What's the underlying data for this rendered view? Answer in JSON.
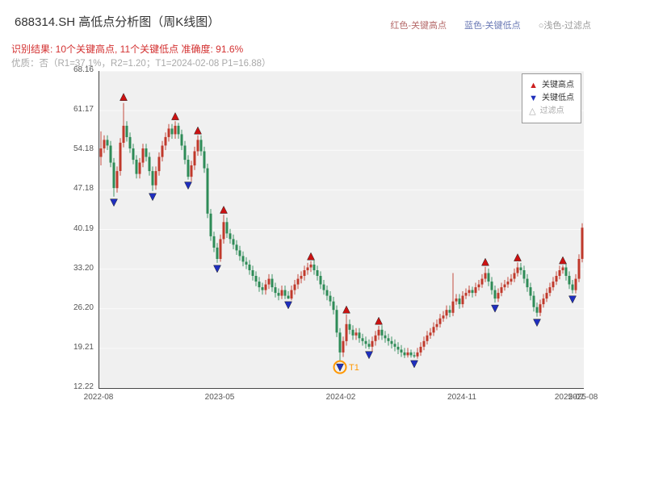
{
  "header": {
    "title": "688314.SH 高低点分析图（周K线图）",
    "legend_top": [
      {
        "label": "红色-关键高点",
        "color": "#b56a6a"
      },
      {
        "label": "蓝色-关键低点",
        "color": "#6a79b5"
      },
      {
        "label": "○浅色-过滤点",
        "color": "#9a9a9a"
      }
    ],
    "result_text": "识别结果: 10个关键高点, 11个关键低点  准确度: 91.6%",
    "quality_text": "优质：否（R1=37.1%，R2=1.20；T1=2024-02-08 P1=16.88）"
  },
  "plot_legend": {
    "items": [
      {
        "marker": "▲",
        "label": "关键高点",
        "marker_color": "#cc1f1f",
        "text_color": "#333333"
      },
      {
        "marker": "▼",
        "label": "关键低点",
        "marker_color": "#2030bb",
        "text_color": "#333333"
      },
      {
        "marker": "△",
        "label": "过滤点",
        "marker_color": "#aaaaaa",
        "text_color": "#aaaaaa"
      }
    ]
  },
  "chart_data": {
    "type": "candlestick",
    "title": "688314.SH 高低点分析图（周K线图）",
    "ylim": [
      12.22,
      68.16
    ],
    "y_ticks": [
      68.16,
      61.17,
      54.18,
      47.18,
      40.19,
      33.2,
      26.2,
      19.21,
      12.22
    ],
    "x_ticks": [
      {
        "label": "2022-08",
        "pos": 0.0
      },
      {
        "label": "2023-05",
        "pos": 0.25
      },
      {
        "label": "2024-02",
        "pos": 0.5
      },
      {
        "label": "2024-11",
        "pos": 0.75
      },
      {
        "label": "2025-07",
        "pos": 0.972
      },
      {
        "label": "2025-08",
        "pos": 1.0
      }
    ],
    "up_color": "#c0392b",
    "down_color": "#2e8b57",
    "high_marker_color": "#cc1111",
    "low_marker_color": "#1f2fbf",
    "grid_color": "rgba(255,255,255,0.7)",
    "key_highs": [
      {
        "i": 7,
        "price": 63.5
      },
      {
        "i": 23,
        "price": 60.1
      },
      {
        "i": 30,
        "price": 57.6
      },
      {
        "i": 38,
        "price": 43.6
      },
      {
        "i": 65,
        "price": 35.4
      },
      {
        "i": 76,
        "price": 26.0
      },
      {
        "i": 86,
        "price": 24.0
      },
      {
        "i": 119,
        "price": 34.4
      },
      {
        "i": 129,
        "price": 35.2
      },
      {
        "i": 143,
        "price": 34.7
      }
    ],
    "key_lows": [
      {
        "i": 4,
        "price": 45.0
      },
      {
        "i": 16,
        "price": 46.0
      },
      {
        "i": 27,
        "price": 48.0
      },
      {
        "i": 36,
        "price": 33.3
      },
      {
        "i": 58,
        "price": 26.9
      },
      {
        "i": 74,
        "price": 15.9
      },
      {
        "i": 83,
        "price": 18.1
      },
      {
        "i": 97,
        "price": 16.5
      },
      {
        "i": 122,
        "price": 26.3
      },
      {
        "i": 135,
        "price": 23.8
      },
      {
        "i": 146,
        "price": 27.9
      }
    ],
    "t1": {
      "index": 74,
      "price": 15.9,
      "label": "T1",
      "color": "#ff9800"
    },
    "candles": [
      [
        53.0,
        57.5,
        51.5,
        54.5
      ],
      [
        54.5,
        56.8,
        53.7,
        56.0
      ],
      [
        56.0,
        56.8,
        54.2,
        55.0
      ],
      [
        55.0,
        55.8,
        51.2,
        52.0
      ],
      [
        52.0,
        52.8,
        46.0,
        47.5
      ],
      [
        47.5,
        51.3,
        46.7,
        50.5
      ],
      [
        50.5,
        56.3,
        49.7,
        55.5
      ],
      [
        55.5,
        62.5,
        54.7,
        58.5
      ],
      [
        58.5,
        59.3,
        55.7,
        56.5
      ],
      [
        56.5,
        57.3,
        53.7,
        54.5
      ],
      [
        54.5,
        55.3,
        51.7,
        52.5
      ],
      [
        52.5,
        53.3,
        49.2,
        50.0
      ],
      [
        50.0,
        52.8,
        49.2,
        52.0
      ],
      [
        52.0,
        55.3,
        51.2,
        54.5
      ],
      [
        54.5,
        55.3,
        52.2,
        53.0
      ],
      [
        53.0,
        53.8,
        49.7,
        50.5
      ],
      [
        50.5,
        51.3,
        47.0,
        48.0
      ],
      [
        48.0,
        51.3,
        47.2,
        50.5
      ],
      [
        50.5,
        53.8,
        49.7,
        53.0
      ],
      [
        53.0,
        55.8,
        52.2,
        55.0
      ],
      [
        55.0,
        57.3,
        54.2,
        56.5
      ],
      [
        56.5,
        58.8,
        55.7,
        58.0
      ],
      [
        58.0,
        58.8,
        56.2,
        57.0
      ],
      [
        57.0,
        59.3,
        56.2,
        58.5
      ],
      [
        58.5,
        59.0,
        56.2,
        57.0
      ],
      [
        57.0,
        57.8,
        54.2,
        55.0
      ],
      [
        55.0,
        55.8,
        51.7,
        52.5
      ],
      [
        52.5,
        53.3,
        49.0,
        49.5
      ],
      [
        49.5,
        52.3,
        48.7,
        51.5
      ],
      [
        51.5,
        54.8,
        50.7,
        54.0
      ],
      [
        54.0,
        56.8,
        53.2,
        56.0
      ],
      [
        56.0,
        56.8,
        53.2,
        54.0
      ],
      [
        54.0,
        54.8,
        50.2,
        51.0
      ],
      [
        51.0,
        51.8,
        42.2,
        43.0
      ],
      [
        43.0,
        43.8,
        38.2,
        39.0
      ],
      [
        39.0,
        39.8,
        36.2,
        37.0
      ],
      [
        37.0,
        37.8,
        34.3,
        35.0
      ],
      [
        35.0,
        39.3,
        34.5,
        38.5
      ],
      [
        38.5,
        42.8,
        37.7,
        41.5
      ],
      [
        41.5,
        42.3,
        38.7,
        39.5
      ],
      [
        39.5,
        40.3,
        37.7,
        38.5
      ],
      [
        38.5,
        39.3,
        36.7,
        37.5
      ],
      [
        37.5,
        38.3,
        35.7,
        36.5
      ],
      [
        36.5,
        37.3,
        34.7,
        35.5
      ],
      [
        35.5,
        36.3,
        33.7,
        34.5
      ],
      [
        34.5,
        35.3,
        33.2,
        34.0
      ],
      [
        34.0,
        34.8,
        32.2,
        33.0
      ],
      [
        33.0,
        33.8,
        31.2,
        32.0
      ],
      [
        32.0,
        32.8,
        30.2,
        31.0
      ],
      [
        31.0,
        31.8,
        29.2,
        30.0
      ],
      [
        30.0,
        30.8,
        28.7,
        29.5
      ],
      [
        29.5,
        31.3,
        28.7,
        30.5
      ],
      [
        30.5,
        32.3,
        29.7,
        31.5
      ],
      [
        31.5,
        32.3,
        29.2,
        30.0
      ],
      [
        30.0,
        30.8,
        28.2,
        29.0
      ],
      [
        29.0,
        29.8,
        27.7,
        28.5
      ],
      [
        28.5,
        30.3,
        27.9,
        29.5
      ],
      [
        29.5,
        30.3,
        27.9,
        28.5
      ],
      [
        28.5,
        29.3,
        27.9,
        28.0
      ],
      [
        28.0,
        30.3,
        27.7,
        29.5
      ],
      [
        29.5,
        31.3,
        28.7,
        30.5
      ],
      [
        30.5,
        32.3,
        29.7,
        31.5
      ],
      [
        31.5,
        32.8,
        30.7,
        32.0
      ],
      [
        32.0,
        33.8,
        31.2,
        33.0
      ],
      [
        33.0,
        34.3,
        32.2,
        33.5
      ],
      [
        33.5,
        34.6,
        32.7,
        34.0
      ],
      [
        34.0,
        34.8,
        32.2,
        33.0
      ],
      [
        33.0,
        33.8,
        31.2,
        32.0
      ],
      [
        32.0,
        32.8,
        29.7,
        30.5
      ],
      [
        30.5,
        31.3,
        28.7,
        29.5
      ],
      [
        29.5,
        30.3,
        27.7,
        28.5
      ],
      [
        28.5,
        29.3,
        26.7,
        27.5
      ],
      [
        27.5,
        28.3,
        25.2,
        26.0
      ],
      [
        26.0,
        26.8,
        21.2,
        22.0
      ],
      [
        22.0,
        22.8,
        16.88,
        18.5
      ],
      [
        18.5,
        21.3,
        17.7,
        20.5
      ],
      [
        20.5,
        25.2,
        19.7,
        23.5
      ],
      [
        23.5,
        24.3,
        21.7,
        22.5
      ],
      [
        22.5,
        23.3,
        20.7,
        21.5
      ],
      [
        21.5,
        22.8,
        20.7,
        22.0
      ],
      [
        22.0,
        22.8,
        20.2,
        21.0
      ],
      [
        21.0,
        21.8,
        19.7,
        20.5
      ],
      [
        20.5,
        21.3,
        19.2,
        20.0
      ],
      [
        20.0,
        20.8,
        19.1,
        19.5
      ],
      [
        19.5,
        21.3,
        18.7,
        20.5
      ],
      [
        20.5,
        22.3,
        19.7,
        21.5
      ],
      [
        21.5,
        23.2,
        20.7,
        22.5
      ],
      [
        22.5,
        23.3,
        20.7,
        21.5
      ],
      [
        21.5,
        22.3,
        20.2,
        21.0
      ],
      [
        21.0,
        21.8,
        19.7,
        20.5
      ],
      [
        20.5,
        21.3,
        19.2,
        20.0
      ],
      [
        20.0,
        20.8,
        18.7,
        19.5
      ],
      [
        19.5,
        20.3,
        18.2,
        19.0
      ],
      [
        19.0,
        19.8,
        17.7,
        18.5
      ],
      [
        18.5,
        19.3,
        17.5,
        18.0
      ],
      [
        18.0,
        19.3,
        17.6,
        18.5
      ],
      [
        18.5,
        19.0,
        17.6,
        18.0
      ],
      [
        18.0,
        18.6,
        17.5,
        17.8
      ],
      [
        17.8,
        19.3,
        17.4,
        18.5
      ],
      [
        18.5,
        20.3,
        17.9,
        19.5
      ],
      [
        19.5,
        21.3,
        18.9,
        20.5
      ],
      [
        20.5,
        22.3,
        19.9,
        21.5
      ],
      [
        21.5,
        22.8,
        20.9,
        22.0
      ],
      [
        22.0,
        23.8,
        21.4,
        23.0
      ],
      [
        23.0,
        24.3,
        22.4,
        23.5
      ],
      [
        23.5,
        25.3,
        22.9,
        24.5
      ],
      [
        24.5,
        25.8,
        23.9,
        25.0
      ],
      [
        25.0,
        26.8,
        24.4,
        26.0
      ],
      [
        26.0,
        26.8,
        24.7,
        25.5
      ],
      [
        25.5,
        32.5,
        24.9,
        27.5
      ],
      [
        27.5,
        28.8,
        26.9,
        28.0
      ],
      [
        28.0,
        28.8,
        26.2,
        27.0
      ],
      [
        27.0,
        29.3,
        26.4,
        28.5
      ],
      [
        28.5,
        29.8,
        27.9,
        29.0
      ],
      [
        29.0,
        30.3,
        28.4,
        29.5
      ],
      [
        29.5,
        30.1,
        28.2,
        29.0
      ],
      [
        29.0,
        30.8,
        28.4,
        30.0
      ],
      [
        30.0,
        31.3,
        29.4,
        30.5
      ],
      [
        30.5,
        32.3,
        29.9,
        31.5
      ],
      [
        31.5,
        33.6,
        30.9,
        32.5
      ],
      [
        32.5,
        33.3,
        30.2,
        31.0
      ],
      [
        31.0,
        31.8,
        28.7,
        29.5
      ],
      [
        29.5,
        30.3,
        27.3,
        28.0
      ],
      [
        28.0,
        29.8,
        27.4,
        29.0
      ],
      [
        29.0,
        30.8,
        28.4,
        30.0
      ],
      [
        30.0,
        31.3,
        29.4,
        30.5
      ],
      [
        30.5,
        31.8,
        29.9,
        31.0
      ],
      [
        31.0,
        32.3,
        30.4,
        31.5
      ],
      [
        31.5,
        33.3,
        30.9,
        32.5
      ],
      [
        32.5,
        34.4,
        31.9,
        33.5
      ],
      [
        33.5,
        34.3,
        32.2,
        33.0
      ],
      [
        33.0,
        33.8,
        30.7,
        31.5
      ],
      [
        31.5,
        32.3,
        29.2,
        30.0
      ],
      [
        30.0,
        30.8,
        27.7,
        28.5
      ],
      [
        28.5,
        29.3,
        25.7,
        26.5
      ],
      [
        26.5,
        27.3,
        24.8,
        25.5
      ],
      [
        25.5,
        27.8,
        24.9,
        27.0
      ],
      [
        27.0,
        28.8,
        26.4,
        28.0
      ],
      [
        28.0,
        29.8,
        27.4,
        29.0
      ],
      [
        29.0,
        30.8,
        28.4,
        30.0
      ],
      [
        30.0,
        31.8,
        29.4,
        31.0
      ],
      [
        31.0,
        32.8,
        30.4,
        32.0
      ],
      [
        32.0,
        33.8,
        31.4,
        33.0
      ],
      [
        33.0,
        33.9,
        32.4,
        33.5
      ],
      [
        33.5,
        34.3,
        31.2,
        32.0
      ],
      [
        32.0,
        32.8,
        29.7,
        30.5
      ],
      [
        30.5,
        31.3,
        28.9,
        29.5
      ],
      [
        29.5,
        32.3,
        28.9,
        31.5
      ],
      [
        31.5,
        35.8,
        30.9,
        35.0
      ],
      [
        35.0,
        41.3,
        34.4,
        40.5
      ]
    ]
  }
}
